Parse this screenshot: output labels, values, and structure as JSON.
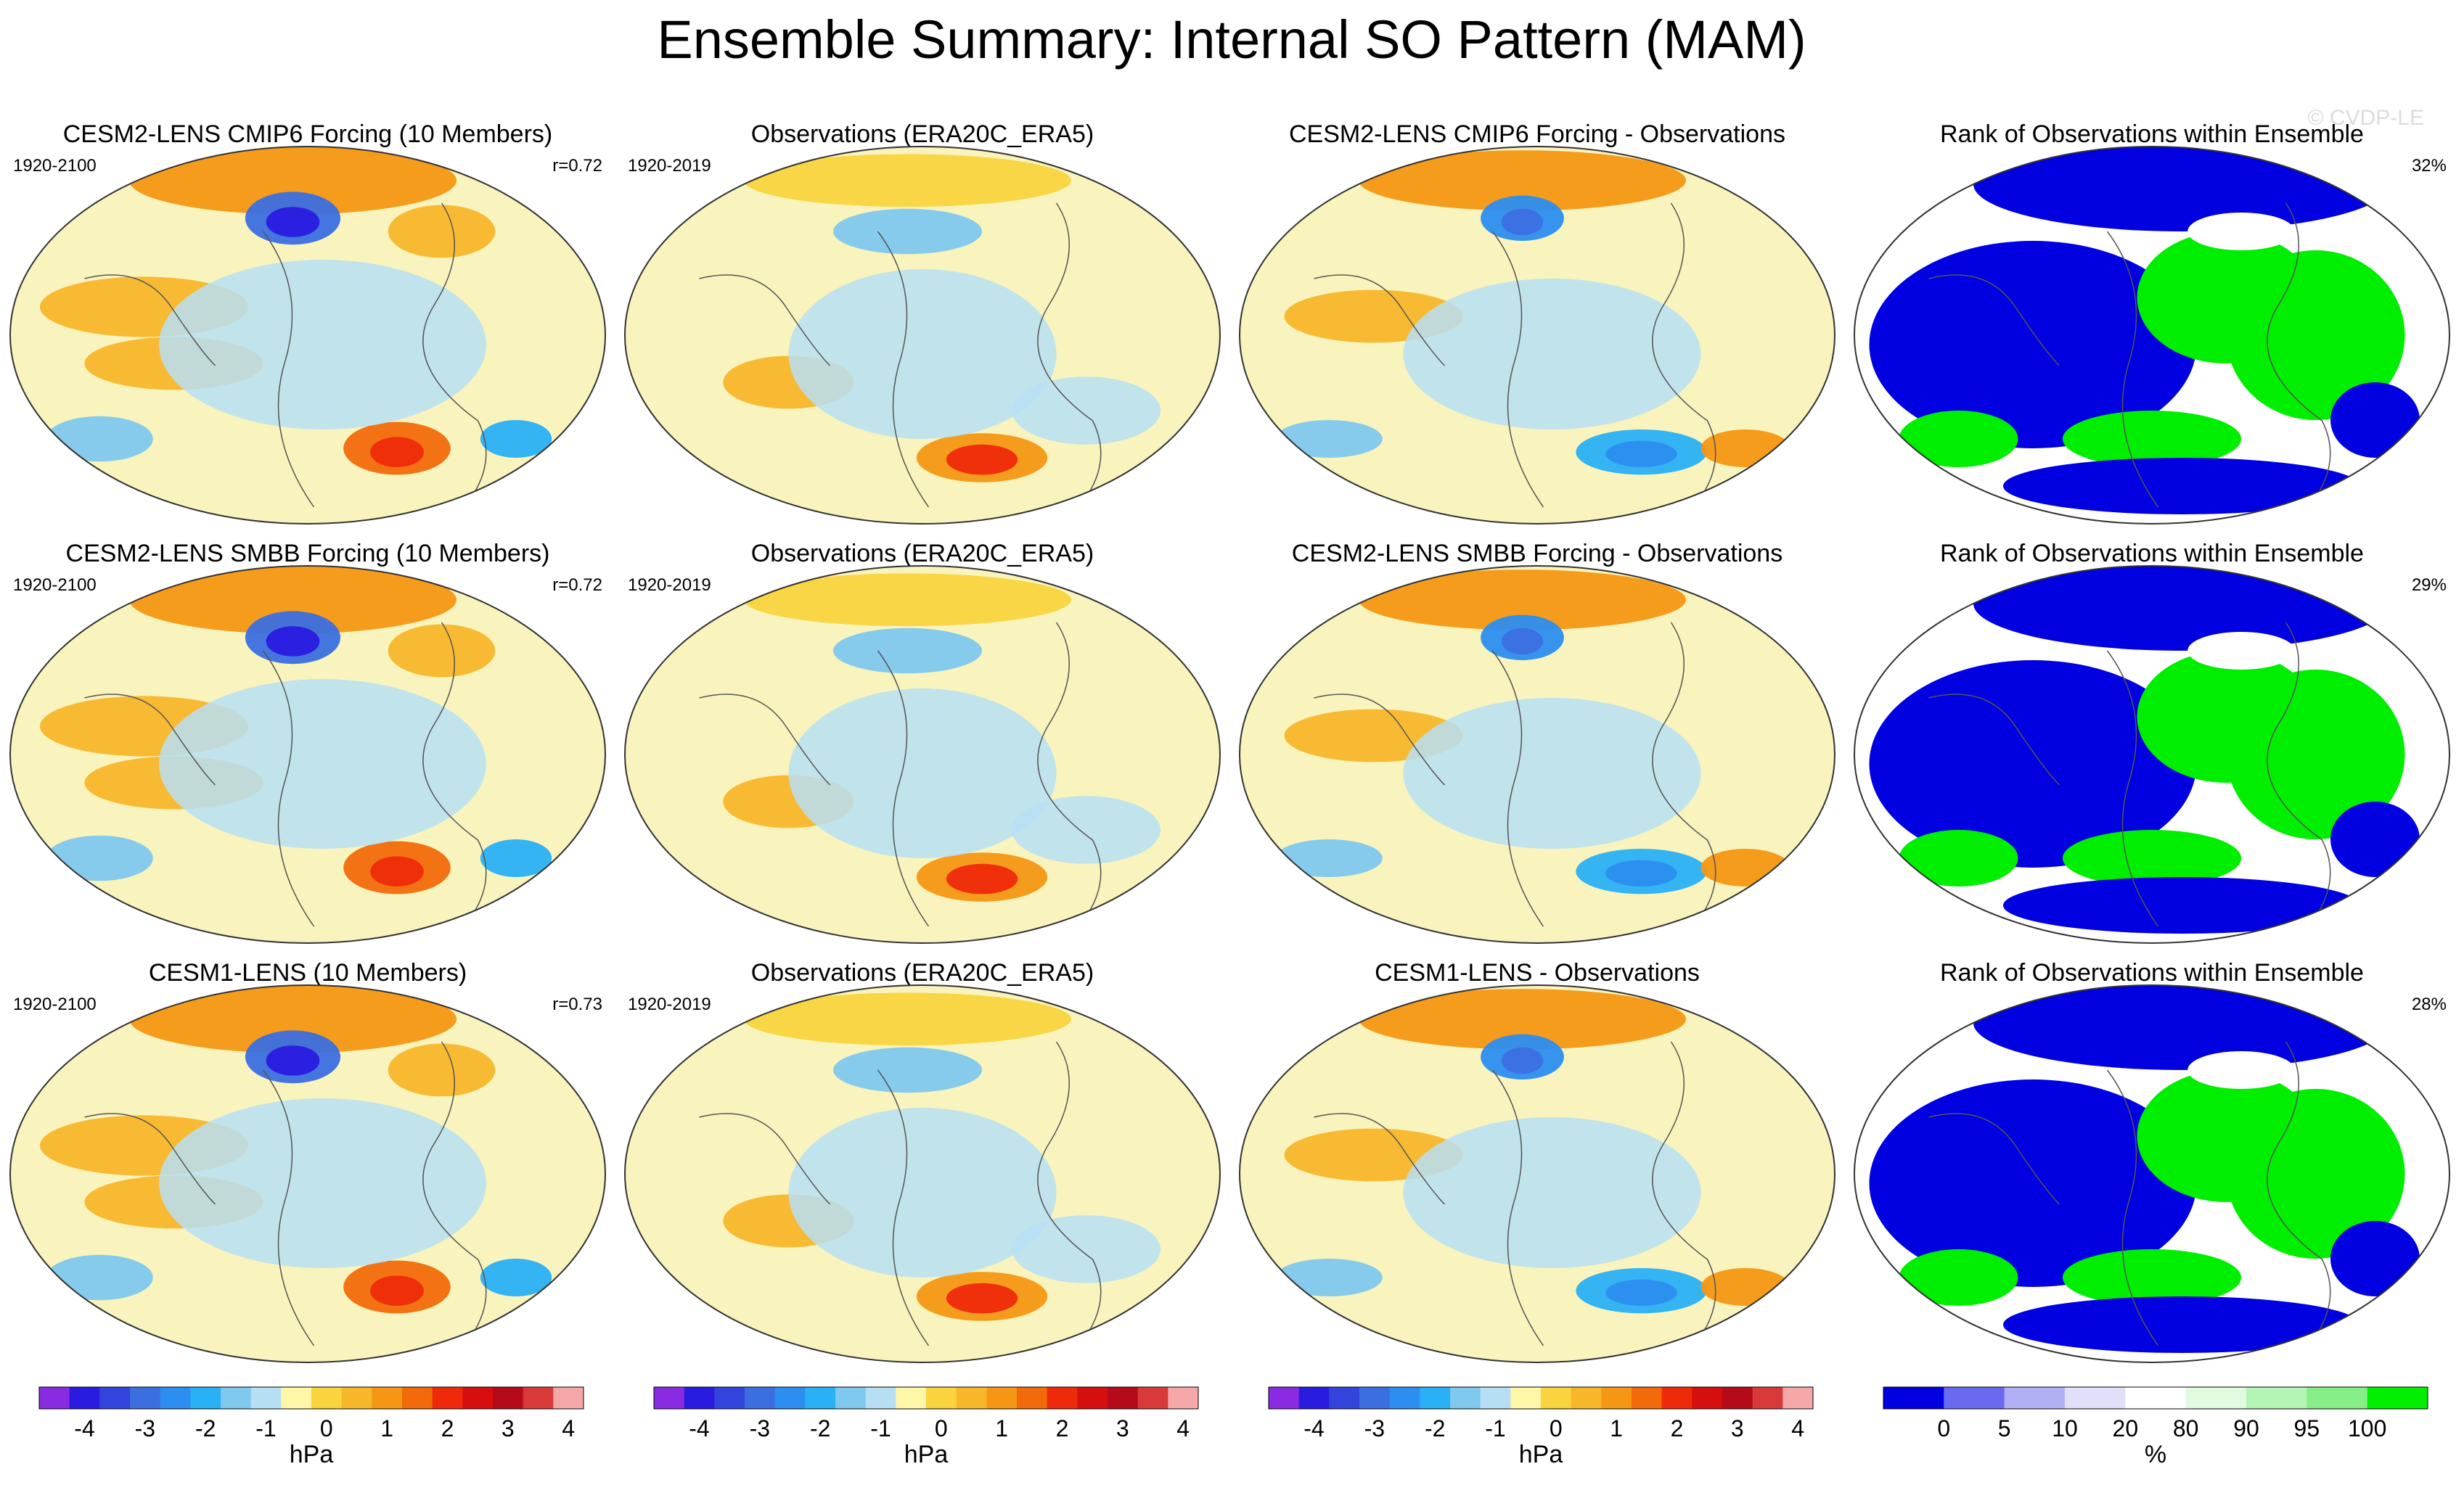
{
  "figure_title": "Ensemble Summary: Internal SO Pattern (MAM)",
  "watermark": "© CVDP-LE",
  "colors": {
    "diverging": [
      "#8a2be2",
      "#2a1be0",
      "#3344dd",
      "#3b6fe0",
      "#2c8ef0",
      "#29b0f5",
      "#7fc8ee",
      "#b7dff4",
      "#fff7a8",
      "#f9d43e",
      "#f8b62b",
      "#f59714",
      "#f26a0a",
      "#ee2a0a",
      "#d70e0e",
      "#b40a1a",
      "#d83a3a",
      "#f6a8a8"
    ],
    "rank": [
      "#0000e0",
      "#6a6af0",
      "#b0b0f4",
      "#e0e0fb",
      "#ffffff",
      "#e0fbe0",
      "#b4f4b4",
      "#86ee86",
      "#00ee00"
    ],
    "map_fill": "#f9f4bd",
    "ocean_neg": "#b7dff4"
  },
  "rows": [
    {
      "panels": [
        {
          "title": "CESM2-LENS CMIP6 Forcing (10 Members)",
          "left": "1920-2100",
          "right": "r=0.72",
          "kind": "model"
        },
        {
          "title": "Observations (ERA20C_ERA5)",
          "left": "1920-2019",
          "right": "",
          "kind": "obs"
        },
        {
          "title": "CESM2-LENS CMIP6 Forcing - Observations",
          "left": "",
          "right": "",
          "kind": "diff"
        },
        {
          "title": "Rank of Observations within Ensemble",
          "left": "",
          "right": "32%",
          "kind": "rank"
        }
      ]
    },
    {
      "panels": [
        {
          "title": "CESM2-LENS SMBB Forcing (10 Members)",
          "left": "1920-2100",
          "right": "r=0.72",
          "kind": "model"
        },
        {
          "title": "Observations (ERA20C_ERA5)",
          "left": "1920-2019",
          "right": "",
          "kind": "obs"
        },
        {
          "title": "CESM2-LENS SMBB Forcing - Observations",
          "left": "",
          "right": "",
          "kind": "diff"
        },
        {
          "title": "Rank of Observations within Ensemble",
          "left": "",
          "right": "29%",
          "kind": "rank"
        }
      ]
    },
    {
      "panels": [
        {
          "title": "CESM1-LENS (10 Members)",
          "left": "1920-2100",
          "right": "r=0.73",
          "kind": "model"
        },
        {
          "title": "Observations (ERA20C_ERA5)",
          "left": "1920-2019",
          "right": "",
          "kind": "obs"
        },
        {
          "title": "CESM1-LENS - Observations",
          "left": "",
          "right": "",
          "kind": "diff"
        },
        {
          "title": "Rank of Observations within Ensemble",
          "left": "",
          "right": "28%",
          "kind": "rank"
        }
      ]
    }
  ],
  "colorbars": [
    {
      "ticks": [
        "-4",
        "-3",
        "-2",
        "-1",
        "0",
        "1",
        "2",
        "3",
        "4"
      ],
      "unit": "hPa"
    },
    {
      "ticks": [
        "-4",
        "-3",
        "-2",
        "-1",
        "0",
        "1",
        "2",
        "3",
        "4"
      ],
      "unit": "hPa"
    },
    {
      "ticks": [
        "-4",
        "-3",
        "-2",
        "-1",
        "0",
        "1",
        "2",
        "3",
        "4"
      ],
      "unit": "hPa"
    },
    {
      "ticks": [
        "0",
        "5",
        "10",
        "20",
        "80",
        "90",
        "95",
        "100"
      ],
      "unit": "%"
    }
  ],
  "chart_data": {
    "type": "heatmap",
    "description_grid": "3 rows x 4 columns of global map panels",
    "diverging_scale": {
      "min": -4.5,
      "max": 4.5,
      "step": 0.5,
      "unit": "hPa",
      "ticks": [
        -4,
        -3,
        -2,
        -1,
        0,
        1,
        2,
        3,
        4
      ]
    },
    "rank_scale": {
      "bounds": [
        0,
        5,
        10,
        20,
        80,
        90,
        95,
        100
      ],
      "unit": "%"
    },
    "rank_percent_values": [
      32,
      29,
      28
    ],
    "pattern_correlations": [
      0.72,
      0.72,
      0.73
    ]
  }
}
